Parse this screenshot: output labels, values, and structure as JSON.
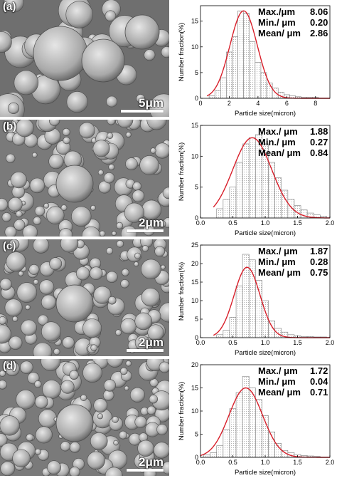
{
  "panels": [
    {
      "label": "(a)",
      "scale_bar": "5μm",
      "stats": [
        {
          "label": "Max./μm",
          "value": "8.06"
        },
        {
          "label": "Min./ μm",
          "value": "0.20"
        },
        {
          "label": "Mean/ μm",
          "value": "2.86"
        }
      ]
    },
    {
      "label": "(b)",
      "scale_bar": "2μm",
      "stats": [
        {
          "label": "Max./ μm",
          "value": "1.88"
        },
        {
          "label": "Min./ μm",
          "value": "0.27"
        },
        {
          "label": "Mean/ μm",
          "value": "0.84"
        }
      ]
    },
    {
      "label": "(c)",
      "scale_bar": "2μm",
      "stats": [
        {
          "label": "Max./ μm",
          "value": "1.87"
        },
        {
          "label": "Min./ μm",
          "value": "0.28"
        },
        {
          "label": "Mean/ μm",
          "value": "0.75"
        }
      ]
    },
    {
      "label": "(d)",
      "scale_bar": "2μm",
      "stats": [
        {
          "label": "Max./ μm",
          "value": "1.72"
        },
        {
          "label": "Min./ μm",
          "value": "0.04"
        },
        {
          "label": "Mean/ μm",
          "value": "0.71"
        }
      ]
    }
  ],
  "chart_data": [
    {
      "type": "bar",
      "xlabel": "Particle size(micron)",
      "ylabel": "Number fraction(%)",
      "xlim": [
        0,
        9
      ],
      "ylim": [
        0,
        18
      ],
      "xticks": [
        "0",
        "2",
        "4",
        "6",
        "8"
      ],
      "yticks": [
        "0",
        "5",
        "10",
        "15"
      ],
      "bin_width": 0.4,
      "x": [
        0.8,
        1.2,
        1.6,
        2.0,
        2.4,
        2.8,
        3.2,
        3.6,
        4.0,
        4.4,
        4.8,
        5.2,
        5.6,
        6.0,
        6.4,
        6.8,
        7.2,
        7.6,
        8.0
      ],
      "values": [
        0.5,
        1.5,
        4.0,
        9.0,
        12.0,
        17.0,
        16.5,
        11.0,
        7.0,
        5.0,
        3.0,
        2.0,
        1.2,
        0.7,
        0.5,
        0.3,
        0.2,
        0.2,
        0.2
      ],
      "fit": {
        "type": "gaussian",
        "mean": 3.0,
        "sigma": 0.95,
        "peak": 17.0
      }
    },
    {
      "type": "bar",
      "xlabel": "Particle size(micron)",
      "ylabel": "Number fraction(%)",
      "xlim": [
        0,
        2.0
      ],
      "ylim": [
        0,
        15
      ],
      "xticks": [
        "0.0",
        "0.5",
        "1.0",
        "1.5",
        "2.0"
      ],
      "yticks": [
        "0",
        "5",
        "10",
        "15"
      ],
      "bin_width": 0.1,
      "x": [
        0.3,
        0.4,
        0.5,
        0.6,
        0.7,
        0.8,
        0.9,
        1.0,
        1.1,
        1.2,
        1.3,
        1.4,
        1.5,
        1.6,
        1.7,
        1.8,
        1.9
      ],
      "values": [
        1.5,
        3.0,
        5.0,
        9.0,
        12.0,
        13.0,
        13.5,
        12.0,
        9.0,
        6.5,
        4.5,
        3.0,
        2.0,
        1.3,
        0.8,
        0.5,
        0.3
      ],
      "fit": {
        "type": "gaussian",
        "mean": 0.8,
        "sigma": 0.3,
        "peak": 13.0
      }
    },
    {
      "type": "bar",
      "xlabel": "Particle size(micron)",
      "ylabel": "Number fraction(%)",
      "xlim": [
        0,
        2.0
      ],
      "ylim": [
        0,
        25
      ],
      "xticks": [
        "0.0",
        "0.5",
        "1.0",
        "1.5",
        "2.0"
      ],
      "yticks": [
        "0",
        "5",
        "10",
        "15",
        "20",
        "25"
      ],
      "bin_width": 0.1,
      "x": [
        0.3,
        0.4,
        0.5,
        0.6,
        0.7,
        0.8,
        0.9,
        1.0,
        1.1,
        1.2,
        1.3,
        1.4,
        1.5,
        1.6,
        1.7,
        1.8,
        1.9
      ],
      "values": [
        0.8,
        2.0,
        5.5,
        14.0,
        22.5,
        21.0,
        15.5,
        10.0,
        4.5,
        2.5,
        1.5,
        0.8,
        0.5,
        0.3,
        0.3,
        0.2,
        0.2
      ],
      "fit": {
        "type": "gaussian",
        "mean": 0.72,
        "sigma": 0.2,
        "peak": 19.0
      }
    },
    {
      "type": "bar",
      "xlabel": "Particle size(micron)",
      "ylabel": "Number fraction(%)",
      "xlim": [
        0,
        2.0
      ],
      "ylim": [
        0,
        20
      ],
      "xticks": [
        "0.0",
        "0.5",
        "1.0",
        "1.5",
        "2.0"
      ],
      "yticks": [
        "0",
        "5",
        "10",
        "15",
        "20"
      ],
      "bin_width": 0.1,
      "x": [
        0.1,
        0.2,
        0.3,
        0.4,
        0.5,
        0.6,
        0.7,
        0.8,
        0.9,
        1.0,
        1.1,
        1.2,
        1.3,
        1.4,
        1.5,
        1.6,
        1.7,
        1.8
      ],
      "values": [
        0.5,
        1.0,
        2.5,
        6.0,
        10.5,
        14.0,
        17.5,
        15.0,
        12.5,
        9.0,
        5.5,
        3.0,
        1.5,
        1.0,
        0.6,
        0.4,
        0.3,
        0.2
      ],
      "fit": {
        "type": "gaussian",
        "mean": 0.7,
        "sigma": 0.26,
        "peak": 15.0
      }
    }
  ]
}
